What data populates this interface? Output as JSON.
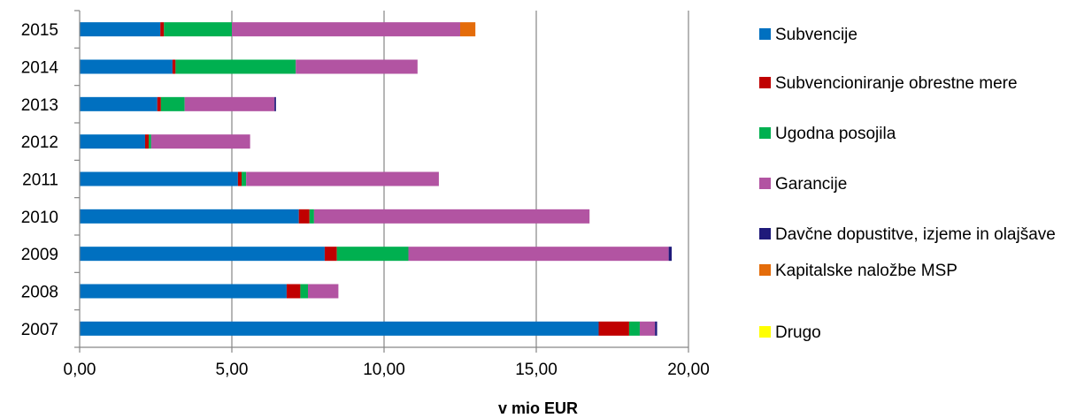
{
  "chart_data": {
    "type": "bar",
    "orientation": "horizontal",
    "stacked": true,
    "title": "",
    "xlabel": "v mio EUR",
    "ylabel": "",
    "xlim": [
      0,
      20
    ],
    "x_ticks": [
      "0,00",
      "5,00",
      "10,00",
      "15,00",
      "20,00"
    ],
    "x_tick_values": [
      0,
      5,
      10,
      15,
      20
    ],
    "grid": "vertical major gridlines",
    "legend_position": "right",
    "categories": [
      "2015",
      "2014",
      "2013",
      "2012",
      "2011",
      "2010",
      "2009",
      "2008",
      "2007"
    ],
    "series": [
      {
        "name": "Subvencije",
        "color": "#0070C0",
        "values": [
          2.65,
          3.05,
          2.55,
          2.15,
          5.2,
          7.2,
          8.05,
          6.8,
          17.05
        ]
      },
      {
        "name": "Subvencioniranje obrestne mere",
        "color": "#C00000",
        "values": [
          0.12,
          0.1,
          0.12,
          0.12,
          0.12,
          0.35,
          0.4,
          0.45,
          1.0
        ]
      },
      {
        "name": "Ugodna posojila",
        "color": "#00B050",
        "values": [
          2.23,
          3.95,
          0.78,
          0.08,
          0.15,
          0.15,
          2.35,
          0.25,
          0.35
        ]
      },
      {
        "name": "Garancije",
        "color": "#B254A2",
        "values": [
          7.5,
          4.0,
          2.95,
          3.25,
          6.33,
          9.05,
          8.55,
          1.0,
          0.5
        ]
      },
      {
        "name": "Davčne dopustitve, izjeme in olajšave",
        "color": "#1F1A7A",
        "values": [
          0,
          0,
          0.05,
          0,
          0,
          0,
          0.1,
          0,
          0.07
        ]
      },
      {
        "name": "Kapitalske naložbe MSP",
        "color": "#E46C0A",
        "values": [
          0.5,
          0,
          0,
          0,
          0,
          0,
          0,
          0,
          0
        ]
      },
      {
        "name": "Drugo",
        "color": "#FFFF00",
        "values": [
          0,
          0,
          0,
          0,
          0,
          0,
          0,
          0,
          0
        ]
      }
    ]
  }
}
